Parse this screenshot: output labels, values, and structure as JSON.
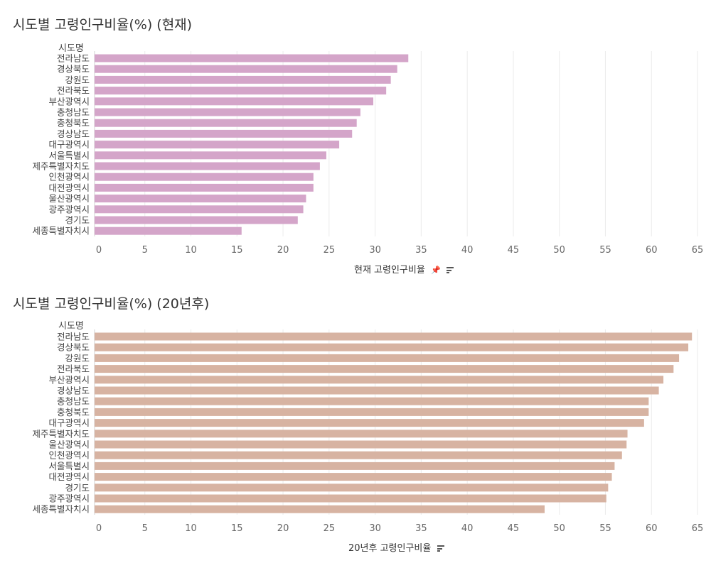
{
  "charts": [
    {
      "title": "시도별 고령인구비율(%) (현재)",
      "row_header": "시도명",
      "axis_title": "현재 고령인구비율",
      "icons": [
        "pin-icon",
        "sort-icon"
      ]
    },
    {
      "title": "시도별 고령인구비율(%) (20년후)",
      "row_header": "시도명",
      "axis_title": "20년후 고령인구비율",
      "icons": [
        "sort-icon"
      ]
    }
  ],
  "colors": {
    "bar_current": "#d4a5c9",
    "bar_future": "#d7b3a2",
    "grid": "#ebebeb"
  },
  "chart_data": [
    {
      "type": "bar",
      "orientation": "horizontal",
      "title": "시도별 고령인구비율(%) (현재)",
      "xlabel": "현재 고령인구비율",
      "ylabel": "시도명",
      "xlim": [
        0,
        65
      ],
      "xticks": [
        0,
        5,
        10,
        15,
        20,
        25,
        30,
        35,
        40,
        45,
        50,
        55,
        60,
        65
      ],
      "grid": true,
      "categories": [
        "전라남도",
        "경상북도",
        "강원도",
        "전라북도",
        "부산광역시",
        "충청남도",
        "충청북도",
        "경상남도",
        "대구광역시",
        "서울특별시",
        "제주특별자치도",
        "인천광역시",
        "대전광역시",
        "울산광역시",
        "광주광역시",
        "경기도",
        "세종특별자치시"
      ],
      "values": [
        33.6,
        32.4,
        31.7,
        31.2,
        29.8,
        28.4,
        28.0,
        27.5,
        26.1,
        24.7,
        24.0,
        23.3,
        23.3,
        22.5,
        22.2,
        21.6,
        15.5
      ]
    },
    {
      "type": "bar",
      "orientation": "horizontal",
      "title": "시도별 고령인구비율(%) (20년후)",
      "xlabel": "20년후 고령인구비율",
      "ylabel": "시도명",
      "xlim": [
        0,
        65
      ],
      "xticks": [
        0,
        5,
        10,
        15,
        20,
        25,
        30,
        35,
        40,
        45,
        50,
        55,
        60,
        65
      ],
      "grid": true,
      "categories": [
        "전라남도",
        "경상북도",
        "강원도",
        "전라북도",
        "부산광역시",
        "경상남도",
        "충청남도",
        "충청북도",
        "대구광역시",
        "제주특별자치도",
        "울산광역시",
        "인천광역시",
        "서울특별시",
        "대전광역시",
        "경기도",
        "광주광역시",
        "세종특별자치시"
      ],
      "values": [
        64.4,
        64.0,
        63.0,
        62.4,
        61.3,
        60.8,
        59.7,
        59.7,
        59.2,
        57.4,
        57.3,
        56.8,
        56.0,
        55.7,
        55.3,
        55.1,
        48.4
      ]
    }
  ]
}
